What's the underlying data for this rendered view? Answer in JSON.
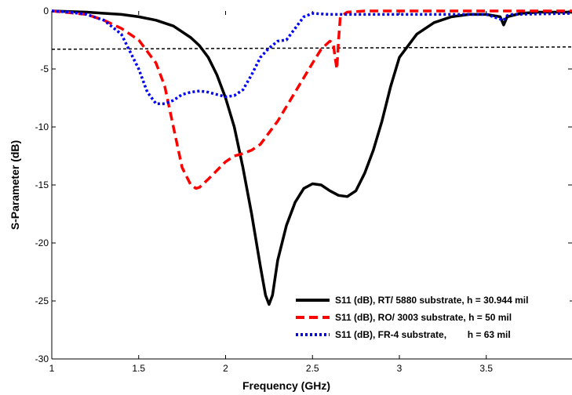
{
  "chart_data": {
    "type": "line",
    "title": "",
    "xlabel": "Frequency (GHz)",
    "ylabel": "S-Parameter (dB)",
    "xlim": [
      1,
      4
    ],
    "ylim": [
      -30,
      0
    ],
    "xticks": [
      1,
      1.5,
      2,
      2.5,
      3,
      3.5
    ],
    "xtick_labels": [
      "1",
      "1.5",
      "2",
      "2.5",
      "3",
      "3.5"
    ],
    "yticks": [
      0,
      -5,
      -10,
      -15,
      -20,
      -25,
      -30
    ],
    "ytick_labels": [
      "0",
      "-5",
      "-10",
      "-15",
      "-20",
      "-25",
      "-30"
    ],
    "grid": false,
    "legend_position": "bottom-right",
    "reference_line": {
      "y_start": -3.3,
      "y_end": -3.1,
      "style": "dashed",
      "color": "#000000"
    },
    "series": [
      {
        "name": "S11 (dB), RT/ 5880 substrate, h = 30.944 mil",
        "color": "#000000",
        "style": "solid",
        "x": [
          1.0,
          1.2,
          1.4,
          1.5,
          1.6,
          1.7,
          1.8,
          1.85,
          1.9,
          1.95,
          2.0,
          2.05,
          2.1,
          2.15,
          2.2,
          2.23,
          2.25,
          2.27,
          2.3,
          2.35,
          2.4,
          2.45,
          2.5,
          2.55,
          2.6,
          2.65,
          2.7,
          2.75,
          2.8,
          2.85,
          2.9,
          2.95,
          3.0,
          3.1,
          3.2,
          3.3,
          3.4,
          3.5,
          3.58,
          3.6,
          3.62,
          3.7,
          3.8,
          4.0
        ],
        "y": [
          0.0,
          -0.1,
          -0.3,
          -0.5,
          -0.8,
          -1.3,
          -2.3,
          -3.0,
          -4.0,
          -5.5,
          -7.5,
          -10.0,
          -13.5,
          -17.5,
          -22.0,
          -24.5,
          -25.3,
          -24.5,
          -21.5,
          -18.5,
          -16.5,
          -15.3,
          -14.9,
          -15.0,
          -15.5,
          -15.9,
          -16.0,
          -15.5,
          -14.0,
          -12.0,
          -9.5,
          -6.5,
          -4.0,
          -2.0,
          -1.0,
          -0.5,
          -0.3,
          -0.3,
          -0.5,
          -1.2,
          -0.5,
          -0.2,
          -0.1,
          -0.1
        ]
      },
      {
        "name": "S11 (dB), RO/ 3003 substrate, h = 50 mil",
        "color": "#ff0000",
        "style": "dashed",
        "x": [
          1.0,
          1.2,
          1.3,
          1.4,
          1.5,
          1.6,
          1.65,
          1.7,
          1.75,
          1.8,
          1.83,
          1.85,
          1.9,
          2.0,
          2.05,
          2.1,
          2.15,
          2.2,
          2.3,
          2.4,
          2.5,
          2.55,
          2.6,
          2.62,
          2.63,
          2.64,
          2.65,
          2.66,
          2.7,
          2.8,
          3.0,
          3.5,
          4.0
        ],
        "y": [
          0.0,
          -0.3,
          -0.8,
          -1.5,
          -2.5,
          -4.5,
          -6.5,
          -10.0,
          -13.5,
          -15.0,
          -15.3,
          -15.2,
          -14.5,
          -13.0,
          -12.5,
          -12.3,
          -12.0,
          -11.5,
          -9.5,
          -7.0,
          -4.5,
          -3.3,
          -2.6,
          -2.8,
          -4.0,
          -5.0,
          -2.5,
          -0.5,
          -0.1,
          0.0,
          0.0,
          0.0,
          0.0
        ]
      },
      {
        "name": "S11 (dB), FR-4 substrate,        h = 63 mil",
        "color": "#0000ff",
        "style": "dotted",
        "x": [
          1.0,
          1.1,
          1.2,
          1.3,
          1.4,
          1.45,
          1.5,
          1.55,
          1.6,
          1.65,
          1.7,
          1.75,
          1.8,
          1.85,
          1.9,
          1.95,
          2.0,
          2.05,
          2.1,
          2.15,
          2.2,
          2.25,
          2.3,
          2.35,
          2.4,
          2.45,
          2.5,
          2.6,
          3.0,
          3.5,
          3.6,
          3.62,
          3.65,
          4.0
        ],
        "y": [
          0.0,
          -0.1,
          -0.3,
          -0.8,
          -2.0,
          -3.5,
          -5.0,
          -7.0,
          -8.0,
          -8.0,
          -7.7,
          -7.2,
          -7.0,
          -6.9,
          -7.0,
          -7.2,
          -7.4,
          -7.3,
          -6.8,
          -5.5,
          -4.0,
          -3.2,
          -2.6,
          -2.5,
          -1.5,
          -0.5,
          -0.2,
          -0.3,
          -0.3,
          -0.3,
          -0.8,
          -0.4,
          -0.3,
          -0.2
        ]
      }
    ]
  }
}
